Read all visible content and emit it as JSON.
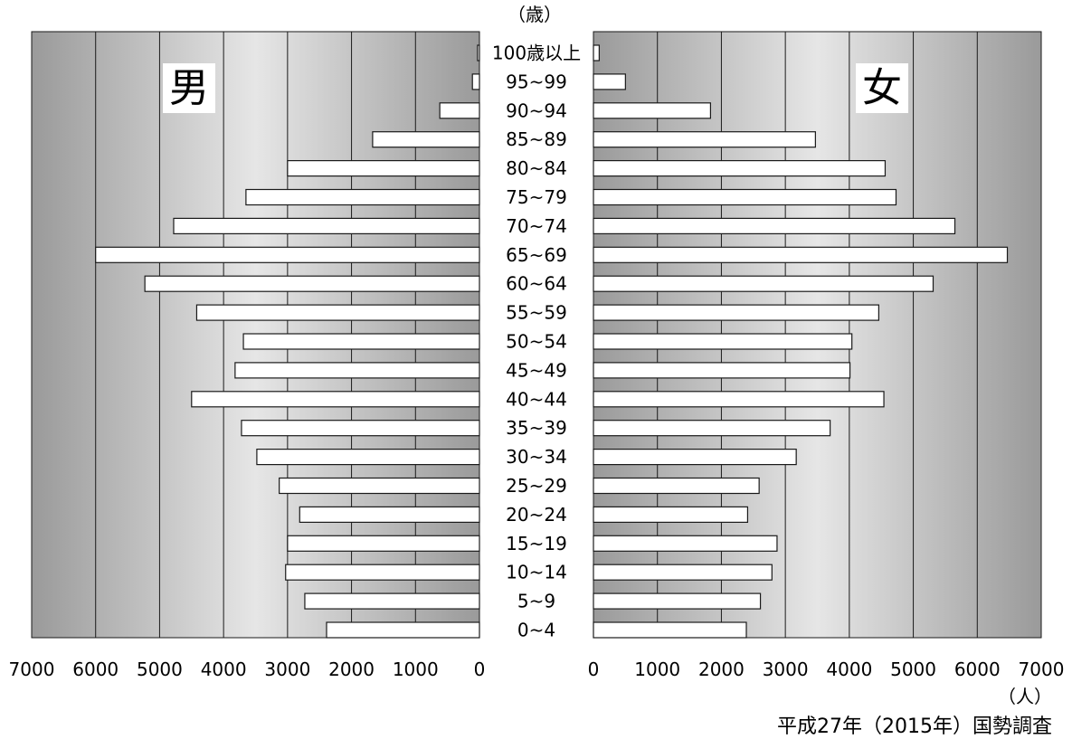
{
  "chart_data": {
    "type": "bar",
    "orientation": "horizontal",
    "layout": "population-pyramid",
    "y_axis_unit": "（歳）",
    "x_axis_unit": "（人）",
    "source_note": "平成27年（2015年）国勢調査",
    "categories": [
      "100歳以上",
      "95~99",
      "90~94",
      "85~89",
      "80~84",
      "75~79",
      "70~74",
      "65~69",
      "60~64",
      "55~59",
      "50~54",
      "45~49",
      "40~44",
      "35~39",
      "30~34",
      "25~29",
      "20~24",
      "15~19",
      "10~14",
      "5~9",
      "0~4"
    ],
    "series": [
      {
        "name": "男",
        "side": "left",
        "values": [
          30,
          110,
          620,
          1670,
          3000,
          3650,
          4780,
          6000,
          5230,
          4420,
          3690,
          3820,
          4500,
          3720,
          3480,
          3130,
          2810,
          3000,
          3030,
          2730,
          2390
        ]
      },
      {
        "name": "女",
        "side": "right",
        "values": [
          90,
          500,
          1830,
          3470,
          4560,
          4730,
          5650,
          6470,
          5310,
          4460,
          4040,
          4010,
          4540,
          3700,
          3170,
          2590,
          2410,
          2870,
          2790,
          2610,
          2390
        ]
      }
    ],
    "x_ticks": [
      0,
      1000,
      2000,
      3000,
      4000,
      5000,
      6000,
      7000
    ],
    "xlim": [
      0,
      7000
    ],
    "grid": true
  }
}
